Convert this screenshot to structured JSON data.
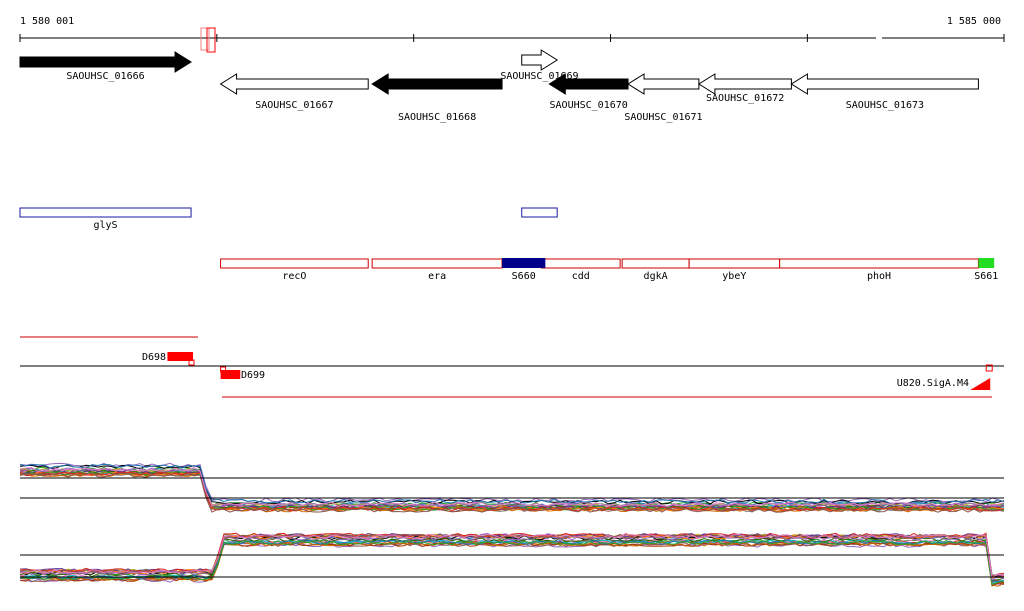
{
  "ruler": {
    "start_label": "1 580 001",
    "end_label": "1 585 000",
    "start": 1580001,
    "end": 1585000
  },
  "genes": [
    {
      "name": "SAOUHSC_01666",
      "start": 1580001,
      "end": 1580870,
      "strand": "+",
      "fill": "#000000",
      "row": 0
    },
    {
      "name": "SAOUHSC_01667",
      "start": 1581020,
      "end": 1581770,
      "strand": "-",
      "fill": "#ffffff",
      "row": 1
    },
    {
      "name": "SAOUHSC_01668",
      "start": 1581790,
      "end": 1582450,
      "strand": "-",
      "fill": "#000000",
      "row": 2
    },
    {
      "name": "SAOUHSC_01669",
      "start": 1582550,
      "end": 1582730,
      "strand": "+",
      "fill": "#ffffff",
      "row": 0
    },
    {
      "name": "SAOUHSC_01670",
      "start": 1582690,
      "end": 1583090,
      "strand": "-",
      "fill": "#000000",
      "row": 1
    },
    {
      "name": "SAOUHSC_01671",
      "start": 1583090,
      "end": 1583450,
      "strand": "-",
      "fill": "#ffffff",
      "row": 2
    },
    {
      "name": "SAOUHSC_01672",
      "start": 1583450,
      "end": 1583920,
      "strand": "-",
      "fill": "#ffffff",
      "row": 1
    },
    {
      "name": "SAOUHSC_01673",
      "start": 1583920,
      "end": 1584870,
      "strand": "-",
      "fill": "#ffffff",
      "row": 1
    }
  ],
  "blue_features": [
    {
      "name": "glyS",
      "start": 1580001,
      "end": 1580870
    },
    {
      "name": "",
      "start": 1582550,
      "end": 1582730
    }
  ],
  "red_features": [
    {
      "name": "recO",
      "start": 1581020,
      "end": 1581770
    },
    {
      "name": "era",
      "start": 1581790,
      "end": 1582450
    },
    {
      "name": "cdd",
      "start": 1582650,
      "end": 1583050
    },
    {
      "name": "dgkA",
      "start": 1583060,
      "end": 1583400
    },
    {
      "name": "ybeY",
      "start": 1583400,
      "end": 1583860
    },
    {
      "name": "phoH",
      "start": 1583860,
      "end": 1584870
    }
  ],
  "s_markers": [
    {
      "name": "S660",
      "start": 1582450,
      "end": 1582670,
      "color": "#00008b"
    },
    {
      "name": "S661",
      "start": 1584870,
      "end": 1584950,
      "color": "#22dd22"
    }
  ],
  "regulatory": [
    {
      "name": "D698",
      "start": 1580750,
      "end": 1580880,
      "strand": "-",
      "color": "#ff0000"
    },
    {
      "name": "D699",
      "start": 1581020,
      "end": 1581120,
      "strand": "+",
      "color": "#ff0000"
    },
    {
      "name": "U820.SigA.M4",
      "start": 1584810,
      "end": 1584930,
      "strand": "-",
      "color": "#ff0000"
    }
  ],
  "colors": {
    "blue_outline": "#1a1aa0",
    "red_outline": "#cc0000",
    "accent_red": "#ff0000"
  }
}
